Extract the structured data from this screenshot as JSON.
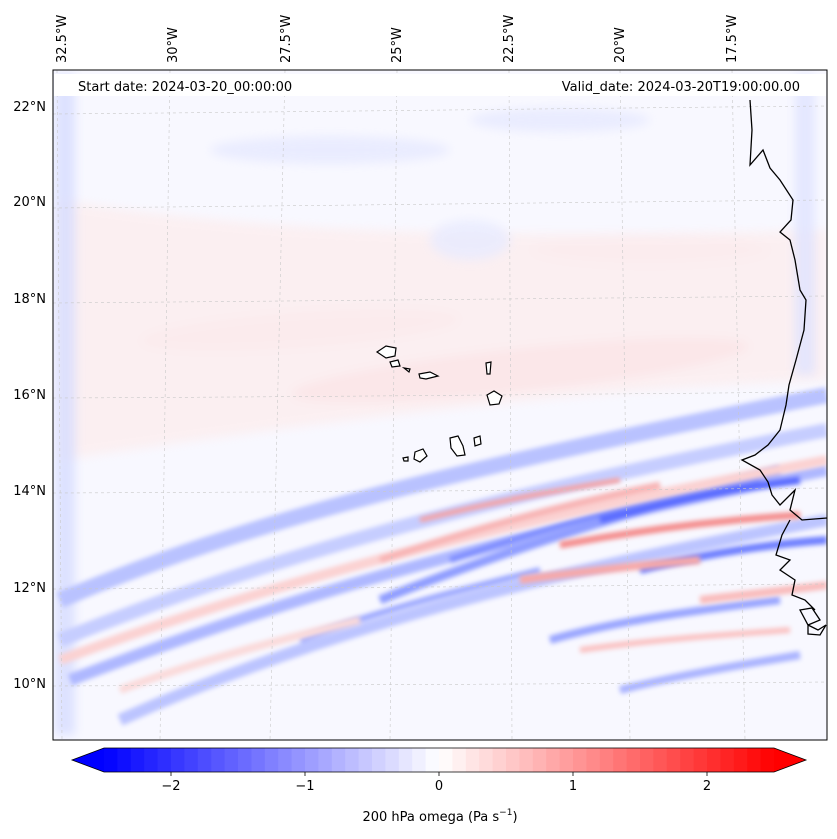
{
  "header": {
    "start_date": "Start date: 2024-03-20_00:00:00",
    "valid_date": "Valid_date: 2024-03-20T19:00:00.00"
  },
  "top_longitude_labels": [
    "32.5°W",
    "30°W",
    "27.5°W",
    "25°W",
    "22.5°W",
    "20°W",
    "17.5°W"
  ],
  "left_latitude_labels": [
    "22°N",
    "20°N",
    "18°N",
    "16°N",
    "14°N",
    "12°N",
    "10°N"
  ],
  "colorbar": {
    "ticks": [
      {
        "value": -2,
        "label": "−2"
      },
      {
        "value": -1,
        "label": "−1"
      },
      {
        "value": 0,
        "label": "0"
      },
      {
        "value": 1,
        "label": "1"
      },
      {
        "value": 2,
        "label": "2"
      }
    ],
    "range": [
      -2.5,
      2.5
    ],
    "label_prefix": "200 hPa omega (Pa s",
    "label_exponent": "−1",
    "label_suffix": ")",
    "low_color": "#0000ff",
    "mid_color": "#ffffff",
    "high_color": "#ff0000"
  },
  "colors": {
    "frame": "#000000",
    "grid": "#c8c8c8",
    "coastline": "#000000"
  }
}
